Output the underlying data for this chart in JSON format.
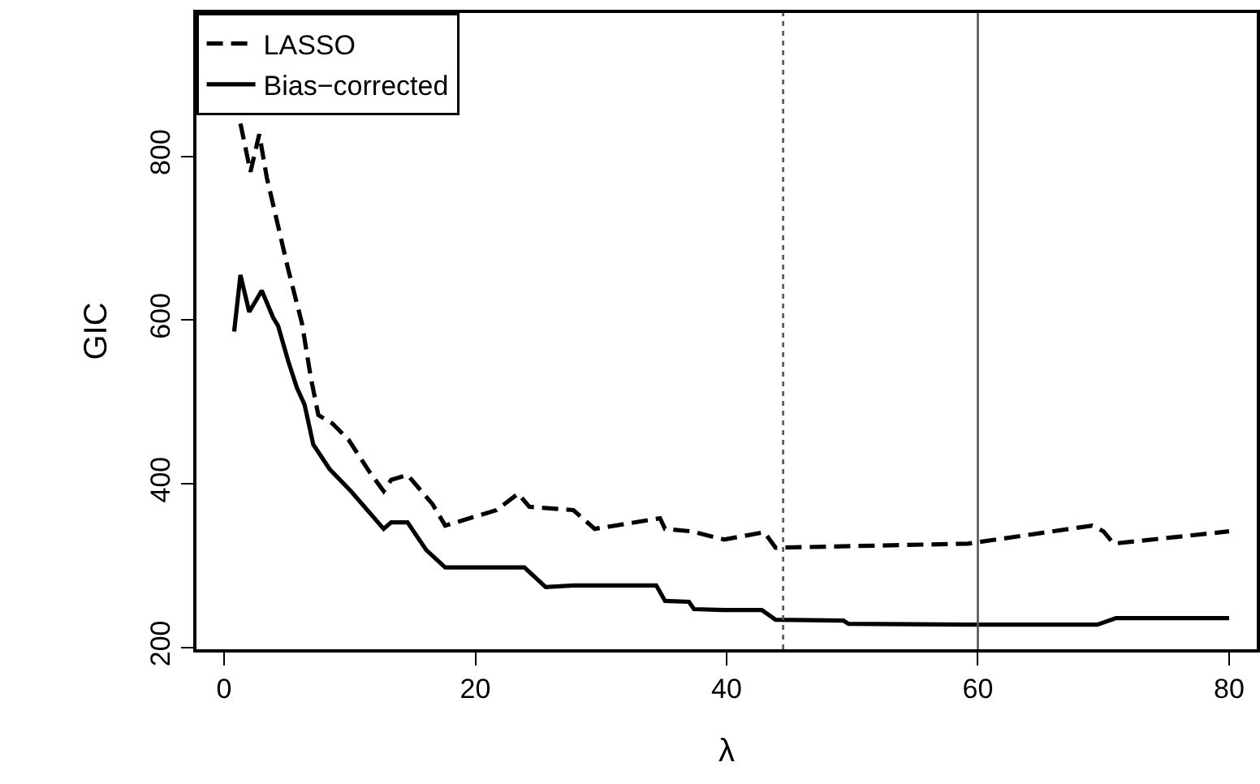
{
  "chart_data": {
    "type": "line",
    "xlabel": "λ",
    "ylabel": "GIC",
    "xlim": [
      -2.2,
      82.2
    ],
    "ylim": [
      198,
      975
    ],
    "xticks": [
      0,
      20,
      40,
      60,
      80
    ],
    "yticks": [
      200,
      400,
      600,
      800
    ],
    "grid": false,
    "legend": "top left",
    "marker": "none",
    "series": [
      {
        "name": "LASSO",
        "color": "#000000",
        "line_style": "dashed",
        "x": [
          1.3,
          2.1,
          2.8,
          3.4,
          4.1,
          5.1,
          6.2,
          6.9,
          7.5,
          8.6,
          9.9,
          11.6,
          12.7,
          13.3,
          14.6,
          16.6,
          17.6,
          21.7,
          23.4,
          24.3,
          27.8,
          29.5,
          34.7,
          35.1,
          37.2,
          39.8,
          43,
          43.9,
          59.2,
          69.1,
          70,
          70.8,
          80
        ],
        "values": [
          840,
          781,
          827,
          774,
          728,
          662,
          596,
          530,
          484,
          474,
          454,
          414,
          391,
          405,
          411,
          375,
          349,
          368,
          388,
          372,
          368,
          345,
          358,
          345,
          342,
          332,
          341,
          322,
          327,
          349,
          342,
          327,
          342
        ]
      },
      {
        "name": "Bias−corrected",
        "color": "#000000",
        "line_style": "solid",
        "x": [
          0.8,
          1.3,
          2,
          3,
          3.9,
          4.3,
          5.1,
          5.8,
          6.4,
          7.1,
          8.4,
          10.1,
          12.7,
          13.3,
          14.6,
          16.1,
          17.6,
          23.9,
          25.6,
          27.8,
          34.4,
          35.1,
          37,
          37.4,
          39.8,
          42.8,
          43.9,
          49.3,
          49.7,
          59.2,
          69.5,
          71,
          80
        ],
        "values": [
          586,
          655,
          610,
          636,
          603,
          593,
          550,
          517,
          497,
          448,
          418,
          391,
          345,
          353,
          353,
          319,
          298,
          298,
          274,
          276,
          276,
          257,
          256,
          247,
          246,
          246,
          234,
          233,
          229,
          228,
          228,
          236,
          236
        ]
      }
    ],
    "ref_lines": [
      {
        "axis": "x",
        "value": 44.5,
        "color": "#555555",
        "line_style": "dotted"
      },
      {
        "axis": "x",
        "value": 60,
        "color": "#555555",
        "line_style": "solid"
      }
    ]
  }
}
